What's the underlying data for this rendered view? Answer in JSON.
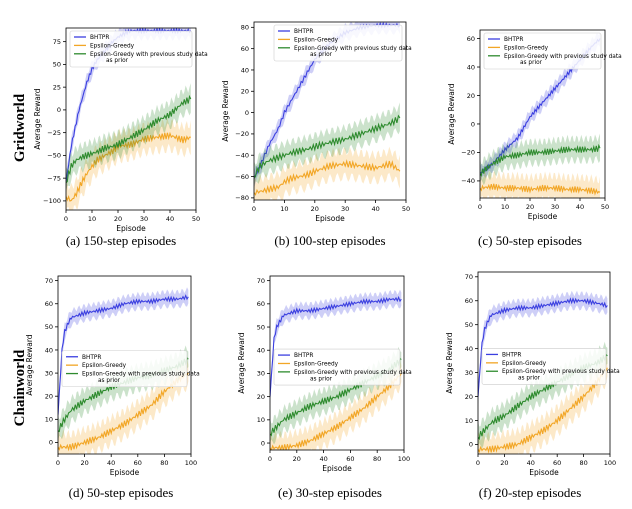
{
  "figure": {
    "row_labels": [
      "Gridworld",
      "Chainworld"
    ],
    "captions": [
      "(a) 150-step episodes",
      "(b) 100-step episodes",
      "(c) 50-step episodes",
      "(d) 50-step episodes",
      "(e) 30-step episodes",
      "(f) 20-step episodes"
    ],
    "colors": {
      "bhtpr": "#3b3fe0",
      "epsilon_greedy": "#f2a626",
      "epsilon_greedy_prior": "#2e8b2e"
    }
  },
  "chart_data": [
    {
      "type": "line",
      "xlabel": "Episode",
      "ylabel": "Average Reward",
      "xlim": [
        0,
        50
      ],
      "ylim": [
        -110,
        90
      ],
      "xticks": [
        0,
        10,
        20,
        30,
        40,
        50
      ],
      "yticks": [
        -100,
        -75,
        -50,
        -25,
        0,
        25,
        50,
        75
      ],
      "legend": "upper-left",
      "series": [
        {
          "name": "BHTPR",
          "x": [
            0,
            2,
            5,
            8,
            10,
            12,
            15,
            18,
            20,
            23,
            25,
            30,
            35,
            40,
            45,
            48
          ],
          "y": [
            -80,
            -40,
            0,
            30,
            45,
            55,
            65,
            75,
            80,
            85,
            87,
            87,
            87,
            87,
            87,
            87
          ]
        },
        {
          "name": "Epsilon-Greedy",
          "x": [
            0,
            2,
            4,
            6,
            8,
            10,
            12,
            15,
            18,
            20,
            25,
            30,
            35,
            40,
            45,
            48
          ],
          "y": [
            -95,
            -100,
            -92,
            -80,
            -70,
            -62,
            -55,
            -50,
            -45,
            -40,
            -38,
            -32,
            -30,
            -28,
            -33,
            -30
          ]
        },
        {
          "name": "Epsilon-Greedy with previous study data as prior",
          "x": [
            0,
            2,
            4,
            6,
            8,
            10,
            12,
            15,
            18,
            20,
            25,
            30,
            35,
            40,
            45,
            48
          ],
          "y": [
            -80,
            -62,
            -55,
            -52,
            -50,
            -48,
            -46,
            -42,
            -40,
            -38,
            -30,
            -22,
            -12,
            -5,
            8,
            12
          ]
        }
      ]
    },
    {
      "type": "line",
      "xlabel": "Episode",
      "ylabel": "Average Reward",
      "xlim": [
        0,
        50
      ],
      "ylim": [
        -82,
        85
      ],
      "xticks": [
        0,
        10,
        20,
        30,
        40,
        50
      ],
      "yticks": [
        -80,
        -60,
        -40,
        -20,
        0,
        20,
        40,
        60,
        80
      ],
      "legend": "upper-right",
      "series": [
        {
          "name": "BHTPR",
          "x": [
            0,
            2,
            5,
            8,
            10,
            12,
            15,
            18,
            20,
            25,
            30,
            35,
            40,
            45,
            48
          ],
          "y": [
            -62,
            -50,
            -30,
            -15,
            0,
            10,
            25,
            40,
            50,
            65,
            75,
            80,
            82,
            82,
            82
          ]
        },
        {
          "name": "Epsilon-Greedy",
          "x": [
            0,
            2,
            5,
            8,
            10,
            12,
            15,
            18,
            20,
            25,
            30,
            35,
            40,
            45,
            48
          ],
          "y": [
            -75,
            -74,
            -72,
            -70,
            -65,
            -62,
            -60,
            -58,
            -55,
            -50,
            -48,
            -50,
            -52,
            -48,
            -55
          ]
        },
        {
          "name": "Epsilon-Greedy with previous study data as prior",
          "x": [
            0,
            2,
            5,
            8,
            10,
            12,
            15,
            18,
            20,
            25,
            30,
            35,
            40,
            45,
            48
          ],
          "y": [
            -60,
            -50,
            -45,
            -42,
            -40,
            -38,
            -36,
            -34,
            -32,
            -28,
            -25,
            -20,
            -15,
            -10,
            -5
          ]
        }
      ]
    },
    {
      "type": "line",
      "xlabel": "Episode",
      "ylabel": "Average Reward",
      "xlim": [
        0,
        50
      ],
      "ylim": [
        -52,
        66
      ],
      "xticks": [
        0,
        10,
        20,
        30,
        40,
        50
      ],
      "yticks": [
        -40,
        -20,
        0,
        20,
        40,
        60
      ],
      "legend": "upper-right",
      "series": [
        {
          "name": "BHTPR",
          "x": [
            0,
            2,
            5,
            8,
            10,
            15,
            20,
            25,
            30,
            35,
            40,
            45,
            48
          ],
          "y": [
            -35,
            -32,
            -28,
            -22,
            -18,
            -10,
            5,
            15,
            25,
            35,
            45,
            55,
            60
          ]
        },
        {
          "name": "Epsilon-Greedy",
          "x": [
            0,
            5,
            10,
            15,
            20,
            25,
            30,
            35,
            40,
            45,
            48
          ],
          "y": [
            -45,
            -44,
            -45,
            -45,
            -46,
            -45,
            -45,
            -46,
            -46,
            -47,
            -48
          ]
        },
        {
          "name": "Epsilon-Greedy with previous study data as prior",
          "x": [
            0,
            2,
            5,
            8,
            10,
            15,
            20,
            25,
            30,
            35,
            40,
            45,
            48
          ],
          "y": [
            -35,
            -32,
            -28,
            -25,
            -23,
            -22,
            -20,
            -20,
            -19,
            -18,
            -18,
            -18,
            -17
          ]
        }
      ]
    },
    {
      "type": "line",
      "xlabel": "Episode",
      "ylabel": "Average Reward",
      "xlim": [
        0,
        100
      ],
      "ylim": [
        -5,
        72
      ],
      "xticks": [
        0,
        20,
        40,
        60,
        80,
        100
      ],
      "yticks": [
        0,
        10,
        20,
        30,
        40,
        50,
        60,
        70
      ],
      "legend": "center",
      "series": [
        {
          "name": "BHTPR",
          "x": [
            0,
            3,
            5,
            8,
            10,
            15,
            20,
            30,
            40,
            50,
            60,
            70,
            80,
            90,
            98
          ],
          "y": [
            12,
            40,
            48,
            52,
            54,
            55,
            56,
            57,
            58,
            60,
            61,
            61,
            62,
            62,
            63
          ]
        },
        {
          "name": "Epsilon-Greedy",
          "x": [
            0,
            10,
            20,
            30,
            40,
            50,
            60,
            70,
            80,
            90,
            98
          ],
          "y": [
            -2,
            -2,
            0,
            2,
            5,
            8,
            12,
            16,
            22,
            27,
            30
          ]
        },
        {
          "name": "Epsilon-Greedy with previous study data as prior",
          "x": [
            0,
            5,
            10,
            20,
            30,
            40,
            50,
            60,
            70,
            80,
            90,
            98
          ],
          "y": [
            5,
            10,
            14,
            18,
            21,
            24,
            26,
            28,
            29,
            31,
            33,
            36
          ]
        }
      ]
    },
    {
      "type": "line",
      "xlabel": "Episode",
      "ylabel": "Average Reward",
      "xlim": [
        0,
        100
      ],
      "ylim": [
        -3,
        72
      ],
      "xticks": [
        0,
        20,
        40,
        60,
        80,
        100
      ],
      "yticks": [
        0,
        10,
        20,
        30,
        40,
        50,
        60,
        70
      ],
      "legend": "center",
      "series": [
        {
          "name": "BHTPR",
          "x": [
            0,
            3,
            5,
            8,
            10,
            15,
            20,
            30,
            40,
            50,
            60,
            70,
            80,
            90,
            98
          ],
          "y": [
            20,
            45,
            50,
            53,
            55,
            56,
            57,
            57,
            58,
            59,
            60,
            61,
            61,
            62,
            62
          ]
        },
        {
          "name": "Epsilon-Greedy",
          "x": [
            0,
            10,
            20,
            30,
            40,
            50,
            60,
            70,
            80,
            90,
            98
          ],
          "y": [
            -2,
            -2,
            -1,
            1,
            4,
            7,
            11,
            15,
            20,
            25,
            30
          ]
        },
        {
          "name": "Epsilon-Greedy with previous study data as prior",
          "x": [
            0,
            5,
            10,
            20,
            30,
            40,
            50,
            60,
            70,
            80,
            90,
            98
          ],
          "y": [
            4,
            7,
            10,
            13,
            16,
            18,
            20,
            23,
            26,
            29,
            32,
            36
          ]
        }
      ]
    },
    {
      "type": "line",
      "xlabel": "Episode",
      "ylabel": "Average Reward",
      "xlim": [
        0,
        100
      ],
      "ylim": [
        -4,
        72
      ],
      "xticks": [
        0,
        20,
        40,
        60,
        80,
        100
      ],
      "yticks": [
        0,
        10,
        20,
        30,
        40,
        50,
        60,
        70
      ],
      "legend": "center",
      "series": [
        {
          "name": "BHTPR",
          "x": [
            0,
            3,
            5,
            8,
            10,
            15,
            20,
            30,
            40,
            50,
            60,
            70,
            80,
            90,
            98
          ],
          "y": [
            20,
            42,
            48,
            52,
            54,
            55,
            56,
            57,
            57,
            58,
            59,
            60,
            60,
            59,
            58
          ]
        },
        {
          "name": "Epsilon-Greedy",
          "x": [
            0,
            10,
            20,
            30,
            40,
            50,
            60,
            70,
            80,
            90,
            98
          ],
          "y": [
            -2,
            -2,
            -1,
            0,
            3,
            6,
            10,
            15,
            20,
            26,
            32
          ]
        },
        {
          "name": "Epsilon-Greedy with previous study data as prior",
          "x": [
            0,
            5,
            10,
            20,
            30,
            40,
            50,
            60,
            70,
            80,
            90,
            98
          ],
          "y": [
            3,
            6,
            9,
            12,
            16,
            20,
            23,
            26,
            29,
            32,
            34,
            37
          ]
        }
      ]
    }
  ]
}
